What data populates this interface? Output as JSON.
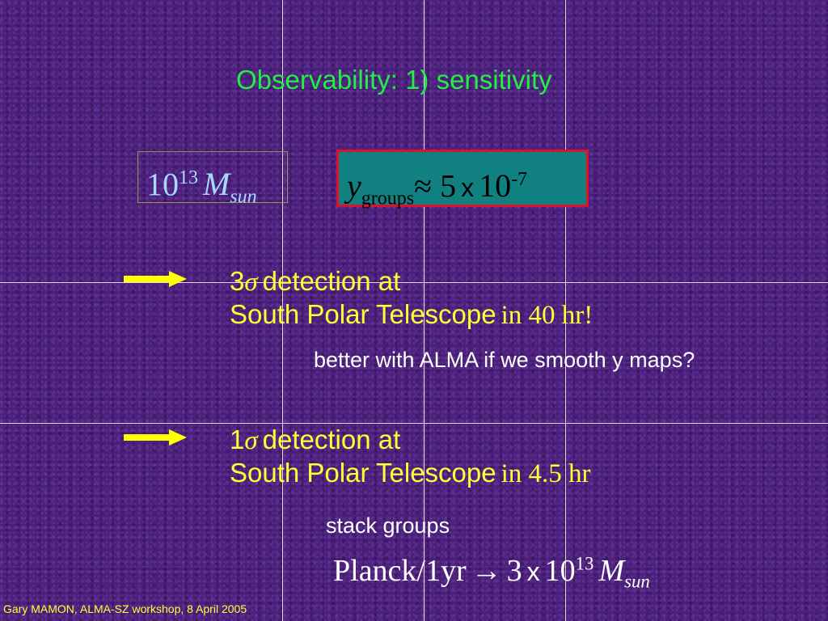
{
  "title": "Observability: 1) sensitivity",
  "mass_box": {
    "base": "10",
    "exp": "13",
    "symbol": "M",
    "sub": "sun"
  },
  "y_box": {
    "symbol": "y",
    "sub": "groups",
    "relation": "≈ 5",
    "times": "x",
    "base": "10",
    "exp": "-7"
  },
  "items": [
    {
      "number": "3",
      "sigma": "σ",
      "line1": "detection at",
      "line2": "South Polar Telescope",
      "time": "in 40 hr!",
      "note": "better with ALMA if we smooth y maps?"
    },
    {
      "number": "1",
      "sigma": "σ",
      "line1": "detection at",
      "line2": "South Polar Telescope",
      "time": "in 4.5 hr",
      "note": "stack groups"
    }
  ],
  "planck": {
    "label": "Planck/1yr",
    "arrow": "→",
    "coef": "3",
    "times": "x",
    "base": "10",
    "exp": "13",
    "symbol": "M",
    "sub": "sun"
  },
  "footer": "Gary MAMON, ALMA-SZ workshop, 8 April 2005"
}
